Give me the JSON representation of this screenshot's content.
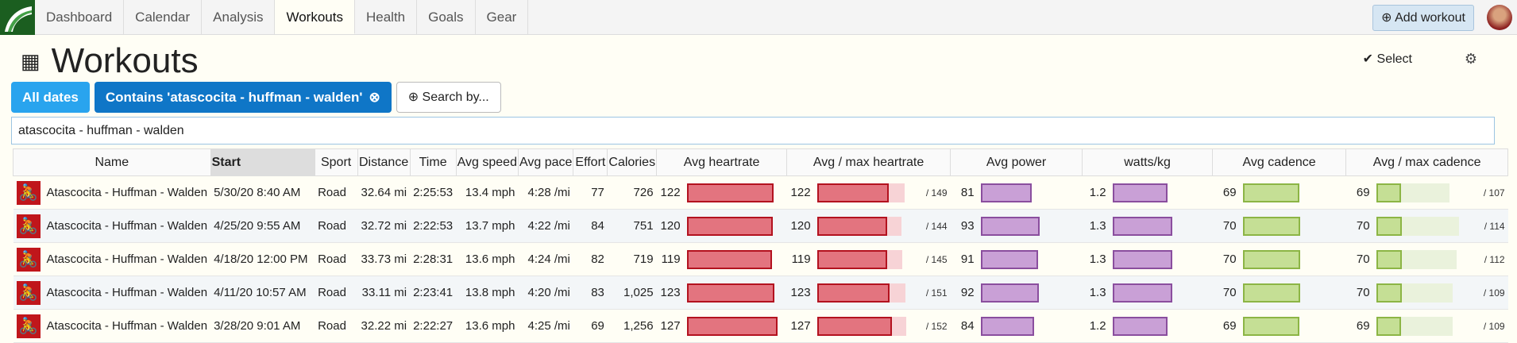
{
  "nav": {
    "tabs": [
      "Dashboard",
      "Calendar",
      "Analysis",
      "Workouts",
      "Health",
      "Goals",
      "Gear"
    ],
    "add_workout": "Add workout"
  },
  "header": {
    "title": "Workouts",
    "select": "Select"
  },
  "filters": [
    "All dates",
    "Contains 'atascocita - huffman - walden'"
  ],
  "search_by": "Search by...",
  "search_text": "atascocita - huffman - walden",
  "table": {
    "columns": [
      "Name",
      "Start",
      "Sport",
      "Distance",
      "Time",
      "Avg speed",
      "Avg pace",
      "Effort",
      "Calories",
      "Avg heartrate",
      "Avg / max heartrate",
      "Avg power",
      "watts/kg",
      "Avg cadence",
      "Avg / max cadence"
    ],
    "rows": [
      {
        "name": "Atascocita - Huffman - Walden",
        "start": "5/30/20 8:40 AM",
        "sport": "Road",
        "distance": "32.64 mi",
        "time": "2:25:53",
        "avg_speed": "13.4 mph",
        "avg_pace": "4:28 /mi",
        "effort": 77,
        "calories": "726",
        "avg_hr": 122,
        "max_hr": {
          "value": 149,
          "label": "/ 149"
        },
        "avg_power": 81,
        "watts_kg": 1.2,
        "avg_cadence": 69,
        "max_cadence": {
          "value": 107,
          "label": "/ 107"
        }
      },
      {
        "name": "Atascocita - Huffman - Walden",
        "start": "4/25/20 9:55 AM",
        "sport": "Road",
        "distance": "32.72 mi",
        "time": "2:22:53",
        "avg_speed": "13.7 mph",
        "avg_pace": "4:22 /mi",
        "effort": 84,
        "calories": "751",
        "avg_hr": 120,
        "max_hr": {
          "value": 144,
          "label": "/ 144"
        },
        "avg_power": 93,
        "watts_kg": 1.3,
        "avg_cadence": 70,
        "max_cadence": {
          "value": 114,
          "label": "/ 114"
        }
      },
      {
        "name": "Atascocita - Huffman - Walden",
        "start": "4/18/20 12:00 PM",
        "sport": "Road",
        "distance": "33.73 mi",
        "time": "2:28:31",
        "avg_speed": "13.6 mph",
        "avg_pace": "4:24 /mi",
        "effort": 82,
        "calories": "719",
        "avg_hr": 119,
        "max_hr": {
          "value": 145,
          "label": "/ 145"
        },
        "avg_power": 91,
        "watts_kg": 1.3,
        "avg_cadence": 70,
        "max_cadence": {
          "value": 112,
          "label": "/ 112"
        }
      },
      {
        "name": "Atascocita - Huffman - Walden",
        "start": "4/11/20 10:57 AM",
        "sport": "Road",
        "distance": "33.11 mi",
        "time": "2:23:41",
        "avg_speed": "13.8 mph",
        "avg_pace": "4:20 /mi",
        "effort": 83,
        "calories": "1,025",
        "avg_hr": 123,
        "max_hr": {
          "value": 151,
          "label": "/ 151"
        },
        "avg_power": 92,
        "watts_kg": 1.3,
        "avg_cadence": 70,
        "max_cadence": {
          "value": 109,
          "label": "/ 109"
        }
      },
      {
        "name": "Atascocita - Huffman - Walden",
        "start": "3/28/20 9:01 AM",
        "sport": "Road",
        "distance": "32.22 mi",
        "time": "2:22:27",
        "avg_speed": "13.6 mph",
        "avg_pace": "4:25 /mi",
        "effort": 69,
        "calories": "1,256",
        "avg_hr": 127,
        "max_hr": {
          "value": 152,
          "label": "/ 152"
        },
        "avg_power": 84,
        "watts_kg": 1.2,
        "avg_cadence": 69,
        "max_cadence": {
          "value": 109,
          "label": "/ 109"
        }
      }
    ]
  }
}
